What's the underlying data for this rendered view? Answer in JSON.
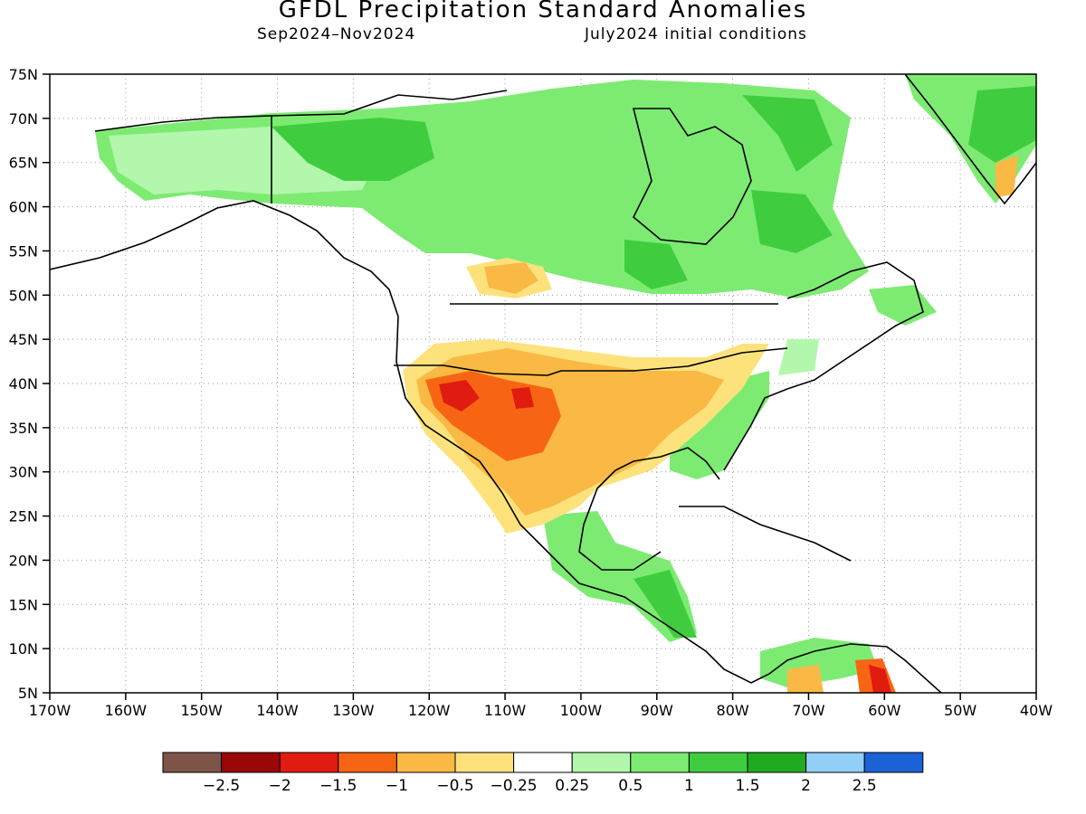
{
  "header": {
    "title": "GFDL Precipitation Standard Anomalies",
    "period": "Sep2024–Nov2024",
    "init": "July2024 initial conditions"
  },
  "axes": {
    "lat_labels": [
      "75N",
      "70N",
      "65N",
      "60N",
      "55N",
      "50N",
      "45N",
      "40N",
      "35N",
      "30N",
      "25N",
      "20N",
      "15N",
      "10N",
      "5N"
    ],
    "lon_labels": [
      "170W",
      "160W",
      "150W",
      "140W",
      "130W",
      "120W",
      "110W",
      "100W",
      "90W",
      "80W",
      "70W",
      "60W",
      "50W",
      "40W"
    ],
    "lat_range": [
      5,
      75
    ],
    "lon_range": [
      -170,
      -40
    ]
  },
  "colorbar": {
    "labels": [
      "−2.5",
      "−2",
      "−1.5",
      "−1",
      "−0.5",
      "−0.25",
      "0.25",
      "0.5",
      "1",
      "1.5",
      "2",
      "2.5"
    ],
    "colors": [
      "#7d5548",
      "#9b0606",
      "#e01b10",
      "#f76514",
      "#f9b944",
      "#fde27c",
      "#ffffff",
      "#b3f7ad",
      "#7deb72",
      "#3fcd3f",
      "#20aa20",
      "#93cef8",
      "#1a62d6"
    ]
  }
}
